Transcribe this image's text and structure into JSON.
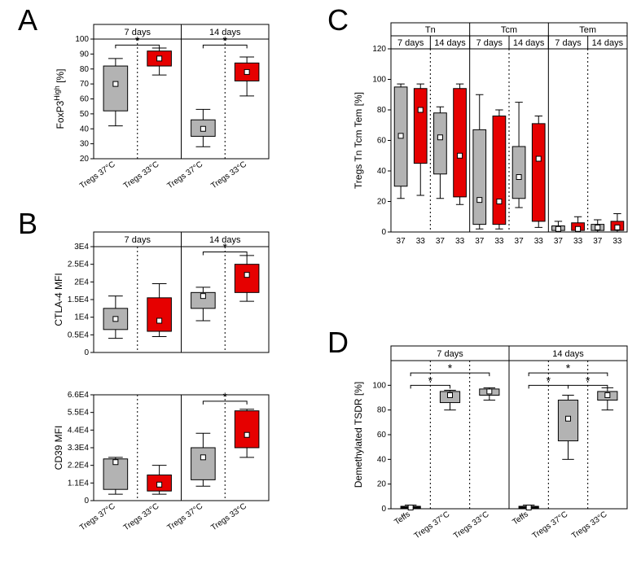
{
  "letters": {
    "A": "A",
    "B": "B",
    "C": "C",
    "D": "D"
  },
  "panelA": {
    "ylabel": "FoxP3High [%]",
    "ylabel_super": "High",
    "headers": [
      "7 days",
      "14 days"
    ],
    "xlabels": [
      "Tregs 37°C",
      "Tregs 33°C",
      "Tregs 37°C",
      "Tregs 33°C"
    ],
    "ylim": [
      20,
      100
    ],
    "ytick_step": 10,
    "boxes": [
      {
        "x": 0,
        "fill": "gray",
        "q1": 52,
        "q3": 82,
        "median": 70,
        "wlow": 42,
        "whigh": 87
      },
      {
        "x": 1,
        "fill": "red",
        "q1": 82,
        "q3": 92,
        "median": 87,
        "wlow": 76,
        "whigh": 94
      },
      {
        "x": 2,
        "fill": "gray",
        "q1": 35,
        "q3": 46,
        "median": 40,
        "wlow": 28,
        "whigh": 53
      },
      {
        "x": 3,
        "fill": "red",
        "q1": 72,
        "q3": 84,
        "median": 78,
        "wlow": 62,
        "whigh": 88
      }
    ],
    "sigs": [
      {
        "from": 0,
        "to": 1,
        "y": 96,
        "label": "*"
      },
      {
        "from": 2,
        "to": 3,
        "y": 96,
        "label": "*"
      }
    ]
  },
  "panelB": {
    "sub1": {
      "ylabel": "CTLA-4 MFI",
      "headers": [
        "7 days",
        "14 days"
      ],
      "ylim": [
        0,
        30000
      ],
      "yticks": [
        0,
        5000,
        10000,
        15000,
        20000,
        25000,
        30000
      ],
      "yticklabels": [
        "0",
        "0.5E4",
        "1E4",
        "1.5E4",
        "2E4",
        "2.5E4",
        "3E4"
      ],
      "boxes": [
        {
          "x": 0,
          "fill": "gray",
          "q1": 6500,
          "q3": 12500,
          "median": 9500,
          "wlow": 4000,
          "whigh": 16000
        },
        {
          "x": 1,
          "fill": "red",
          "q1": 6000,
          "q3": 15500,
          "median": 9000,
          "wlow": 4500,
          "whigh": 19500
        },
        {
          "x": 2,
          "fill": "gray",
          "q1": 12500,
          "q3": 17000,
          "median": 16000,
          "wlow": 9000,
          "whigh": 18500
        },
        {
          "x": 3,
          "fill": "red",
          "q1": 17000,
          "q3": 25000,
          "median": 22000,
          "wlow": 14500,
          "whigh": 27500
        }
      ],
      "sigs": [
        {
          "from": 2,
          "to": 3,
          "y": 28500,
          "label": "*"
        }
      ]
    },
    "sub2": {
      "ylabel": "CD39 MFI",
      "ylim": [
        0,
        66000
      ],
      "yticks": [
        0,
        11000,
        22000,
        33000,
        44000,
        55000,
        66000
      ],
      "yticklabels": [
        "0",
        "1.1E4",
        "2.2E4",
        "3.3E4",
        "4.4E4",
        "5.5E4",
        "6.6E4"
      ],
      "xlabels": [
        "Tregs 37°C",
        "Tregs 33°C",
        "Tregs 37°C",
        "Tregs 33°C"
      ],
      "boxes": [
        {
          "x": 0,
          "fill": "gray",
          "q1": 7000,
          "q3": 26000,
          "median": 24000,
          "wlow": 4000,
          "whigh": 27000
        },
        {
          "x": 1,
          "fill": "red",
          "q1": 6000,
          "q3": 16000,
          "median": 10000,
          "wlow": 4000,
          "whigh": 22000
        },
        {
          "x": 2,
          "fill": "gray",
          "q1": 13000,
          "q3": 33000,
          "median": 27000,
          "wlow": 9000,
          "whigh": 42000
        },
        {
          "x": 3,
          "fill": "red",
          "q1": 33000,
          "q3": 56000,
          "median": 41000,
          "wlow": 27000,
          "whigh": 57000
        }
      ],
      "sigs": [
        {
          "from": 2,
          "to": 3,
          "y": 62000,
          "label": "*"
        }
      ]
    }
  },
  "panelC": {
    "ylabel": "Tregs Tn Tcm Tem [%]",
    "top_headers": [
      "Tn",
      "Tcm",
      "Tem"
    ],
    "sub_headers": [
      "7 days",
      "14 days",
      "7 days",
      "14 days",
      "7 days",
      "14 days"
    ],
    "xlabels": [
      "37",
      "33",
      "37",
      "33",
      "37",
      "33",
      "37",
      "33",
      "37",
      "33",
      "37",
      "33"
    ],
    "ylim": [
      0,
      120
    ],
    "ytick_step": 20,
    "boxes": [
      {
        "x": 0,
        "fill": "gray",
        "q1": 30,
        "q3": 95,
        "median": 63,
        "wlow": 22,
        "whigh": 97
      },
      {
        "x": 1,
        "fill": "red",
        "q1": 45,
        "q3": 94,
        "median": 80,
        "wlow": 24,
        "whigh": 97
      },
      {
        "x": 2,
        "fill": "gray",
        "q1": 38,
        "q3": 78,
        "median": 62,
        "wlow": 22,
        "whigh": 82
      },
      {
        "x": 3,
        "fill": "red",
        "q1": 23,
        "q3": 94,
        "median": 50,
        "wlow": 18,
        "whigh": 97
      },
      {
        "x": 4,
        "fill": "gray",
        "q1": 5,
        "q3": 67,
        "median": 21,
        "wlow": 2,
        "whigh": 90
      },
      {
        "x": 5,
        "fill": "red",
        "q1": 5,
        "q3": 76,
        "median": 20,
        "wlow": 2,
        "whigh": 80
      },
      {
        "x": 6,
        "fill": "gray",
        "q1": 22,
        "q3": 56,
        "median": 36,
        "wlow": 16,
        "whigh": 85
      },
      {
        "x": 7,
        "fill": "red",
        "q1": 7,
        "q3": 71,
        "median": 48,
        "wlow": 3,
        "whigh": 76
      },
      {
        "x": 8,
        "fill": "gray",
        "q1": 1,
        "q3": 4,
        "median": 2,
        "wlow": 0,
        "whigh": 7
      },
      {
        "x": 9,
        "fill": "red",
        "q1": 1,
        "q3": 6,
        "median": 2,
        "wlow": 0,
        "whigh": 10
      },
      {
        "x": 10,
        "fill": "gray",
        "q1": 1,
        "q3": 5,
        "median": 3,
        "wlow": 0,
        "whigh": 8
      },
      {
        "x": 11,
        "fill": "red",
        "q1": 1,
        "q3": 7,
        "median": 3,
        "wlow": 0,
        "whigh": 12
      }
    ]
  },
  "panelD": {
    "ylabel": "Demethylated TSDR [%]",
    "headers": [
      "7 days",
      "14 days"
    ],
    "xlabels": [
      "Teffs",
      "Tregs 37°C",
      "Tregs 33°C",
      "Teffs",
      "Tregs 37°C",
      "Tregs 33°C"
    ],
    "ylim": [
      0,
      100
    ],
    "ytick_step": 20,
    "boxes": [
      {
        "x": 0,
        "fill": "black",
        "q1": 0,
        "q3": 2,
        "median": 1,
        "wlow": 0,
        "whigh": 3
      },
      {
        "x": 1,
        "fill": "gray",
        "q1": 86,
        "q3": 95,
        "median": 92,
        "wlow": 80,
        "whigh": 96
      },
      {
        "x": 2,
        "fill": "gray",
        "q1": 92,
        "q3": 97,
        "median": 95,
        "wlow": 88,
        "whigh": 98
      },
      {
        "x": 3,
        "fill": "black",
        "q1": 0,
        "q3": 2,
        "median": 1,
        "wlow": 0,
        "whigh": 3
      },
      {
        "x": 4,
        "fill": "gray",
        "q1": 55,
        "q3": 88,
        "median": 73,
        "wlow": 40,
        "whigh": 92
      },
      {
        "x": 5,
        "fill": "gray",
        "q1": 88,
        "q3": 95,
        "median": 92,
        "wlow": 80,
        "whigh": 98
      }
    ],
    "sigs": [
      {
        "from": 0,
        "to": 1,
        "y": 100,
        "label": "*"
      },
      {
        "from": 0,
        "to": 2,
        "y": 110,
        "label": "*"
      },
      {
        "from": 3,
        "to": 4,
        "y": 100,
        "label": "*"
      },
      {
        "from": 3,
        "to": 5,
        "y": 110,
        "label": "*"
      },
      {
        "from": 4,
        "to": 5,
        "y": 100,
        "label": "*"
      }
    ]
  },
  "colors": {
    "gray": "#b3b3b3",
    "red": "#e60000",
    "black": "#000000",
    "white": "#ffffff"
  }
}
